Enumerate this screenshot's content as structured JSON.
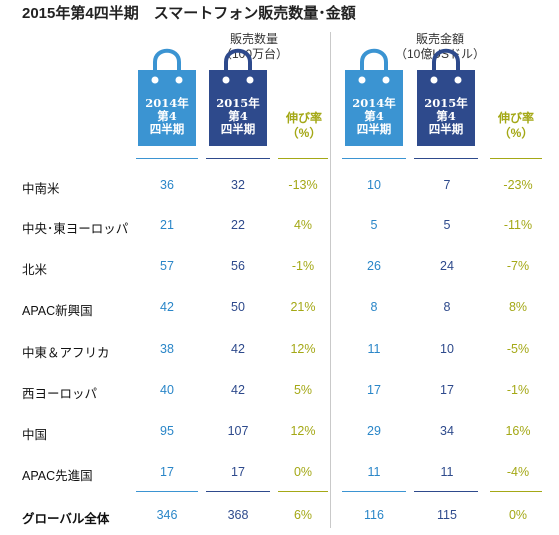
{
  "title": "2015年第4四半期　スマートフォン販売数量･金額",
  "groups": [
    {
      "line1": "販売数量",
      "line2": "（100万台）"
    },
    {
      "line1": "販売金額",
      "line2": "（10億USドル）"
    }
  ],
  "bag_labels": {
    "y2014": [
      "2014年",
      "第4",
      "四半期"
    ],
    "y2015": [
      "2015年",
      "第4",
      "四半期"
    ]
  },
  "growth_header": [
    "伸び率",
    "（%）"
  ],
  "colors": {
    "bag2014": "#3b94d2",
    "bag2015": "#2e4a8c",
    "growth": "#a4a816"
  },
  "chart_data": {
    "type": "table",
    "title": "2015年第4四半期　スマートフォン販売数量･金額",
    "columns": [
      "販売数量 2014年第4四半期",
      "販売数量 2015年第4四半期",
      "販売数量 伸び率",
      "販売金額 2014年第4四半期",
      "販売金額 2015年第4四半期",
      "販売金額 伸び率"
    ],
    "rows": [
      {
        "region": "中南米",
        "v": [
          "36",
          "32",
          "-13%",
          "10",
          "7",
          "-23%"
        ]
      },
      {
        "region": "中央･東ヨーロッパ",
        "v": [
          "21",
          "22",
          "4%",
          "5",
          "5",
          "-11%"
        ]
      },
      {
        "region": "北米",
        "v": [
          "57",
          "56",
          "-1%",
          "26",
          "24",
          "-7%"
        ]
      },
      {
        "region": "APAC新興国",
        "v": [
          "42",
          "50",
          "21%",
          "8",
          "8",
          "8%"
        ]
      },
      {
        "region": "中東＆アフリカ",
        "v": [
          "38",
          "42",
          "12%",
          "11",
          "10",
          "-5%"
        ]
      },
      {
        "region": "西ヨーロッパ",
        "v": [
          "40",
          "42",
          "5%",
          "17",
          "17",
          "-1%"
        ]
      },
      {
        "region": "中国",
        "v": [
          "95",
          "107",
          "12%",
          "29",
          "34",
          "16%"
        ]
      },
      {
        "region": "APAC先進国",
        "v": [
          "17",
          "17",
          "0%",
          "11",
          "11",
          "-4%"
        ]
      },
      {
        "region": "グローバル全体",
        "v": [
          "346",
          "368",
          "6%",
          "116",
          "115",
          "0%"
        ],
        "total": true
      }
    ]
  }
}
